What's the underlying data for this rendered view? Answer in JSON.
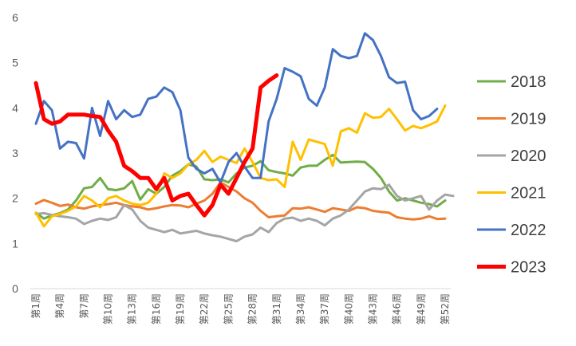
{
  "chart_data": {
    "type": "line",
    "title": "",
    "xlabel": "",
    "ylabel": "",
    "ylim": [
      0,
      6
    ],
    "yticks": [
      "0",
      "1",
      "2",
      "3",
      "4",
      "5",
      "6"
    ],
    "x_tick_labels": [
      "第1周",
      "第4周",
      "第7周",
      "第10周",
      "第13周",
      "第16周",
      "第19周",
      "第22周",
      "第25周",
      "第28周",
      "第31周",
      "第34周",
      "第37周",
      "第40周",
      "第43周",
      "第46周",
      "第49周",
      "第52周"
    ],
    "grid": false,
    "legend": "right",
    "series": [
      {
        "name": "2018",
        "color": "#70AD47",
        "values": [
          1.68,
          1.55,
          1.62,
          1.67,
          1.75,
          1.95,
          2.22,
          2.25,
          2.45,
          2.2,
          2.18,
          2.22,
          2.38,
          1.97,
          2.2,
          2.1,
          2.25,
          2.5,
          2.6,
          2.75,
          2.7,
          2.42,
          2.4,
          2.42,
          2.35,
          2.55,
          2.68,
          2.72,
          2.82,
          2.62,
          2.58,
          2.55,
          2.5,
          2.68,
          2.72,
          2.72,
          2.85,
          2.96,
          2.79,
          2.8,
          2.81,
          2.8,
          2.65,
          2.45,
          2.15,
          1.95,
          2.0,
          1.95,
          1.9,
          1.87,
          1.82,
          1.95
        ]
      },
      {
        "name": "2019",
        "color": "#ED7D31",
        "values": [
          1.88,
          1.96,
          1.9,
          1.83,
          1.86,
          1.8,
          1.77,
          1.82,
          1.85,
          1.87,
          1.9,
          1.85,
          1.82,
          1.8,
          1.75,
          1.78,
          1.82,
          1.85,
          1.84,
          1.8,
          1.88,
          1.95,
          2.1,
          2.35,
          2.25,
          2.15,
          2.0,
          1.9,
          1.72,
          1.58,
          1.6,
          1.62,
          1.78,
          1.77,
          1.8,
          1.75,
          1.7,
          1.78,
          1.75,
          1.72,
          1.8,
          1.78,
          1.72,
          1.7,
          1.68,
          1.58,
          1.55,
          1.53,
          1.55,
          1.6,
          1.54,
          1.55
        ]
      },
      {
        "name": "2020",
        "color": "#A5A5A5",
        "values": [
          1.65,
          1.67,
          1.63,
          1.6,
          1.58,
          1.55,
          1.43,
          1.5,
          1.55,
          1.52,
          1.58,
          1.85,
          1.75,
          1.5,
          1.35,
          1.3,
          1.25,
          1.3,
          1.22,
          1.25,
          1.28,
          1.22,
          1.18,
          1.15,
          1.1,
          1.05,
          1.15,
          1.2,
          1.35,
          1.25,
          1.45,
          1.55,
          1.57,
          1.5,
          1.55,
          1.5,
          1.4,
          1.55,
          1.62,
          1.75,
          1.95,
          2.15,
          2.22,
          2.2,
          2.3,
          2.05,
          1.95,
          2.0,
          2.05,
          1.75,
          1.95,
          2.08,
          2.05
        ]
      },
      {
        "name": "2021",
        "color": "#FFC000",
        "values": [
          1.68,
          1.38,
          1.6,
          1.65,
          1.72,
          1.82,
          2.05,
          1.95,
          1.8,
          2.0,
          2.05,
          1.95,
          1.88,
          1.85,
          1.9,
          2.1,
          2.55,
          2.45,
          2.55,
          2.75,
          2.85,
          3.05,
          2.8,
          2.92,
          2.85,
          2.78,
          3.1,
          2.8,
          2.45,
          2.4,
          2.42,
          2.25,
          3.25,
          2.85,
          3.3,
          3.25,
          3.2,
          2.72,
          3.48,
          3.55,
          3.45,
          3.88,
          3.78,
          3.8,
          3.98,
          3.75,
          3.5,
          3.6,
          3.55,
          3.62,
          3.7,
          4.05
        ]
      },
      {
        "name": "2022",
        "color": "#4472C4",
        "values": [
          3.65,
          4.15,
          3.95,
          3.1,
          3.25,
          3.22,
          2.88,
          4.0,
          3.38,
          4.15,
          3.75,
          3.95,
          3.8,
          3.85,
          4.2,
          4.25,
          4.45,
          4.35,
          3.95,
          2.9,
          2.65,
          2.55,
          2.65,
          2.35,
          2.8,
          3.0,
          2.7,
          2.45,
          2.45,
          3.7,
          4.2,
          4.88,
          4.8,
          4.7,
          4.2,
          4.05,
          4.45,
          5.3,
          5.15,
          5.1,
          5.15,
          5.65,
          5.5,
          5.15,
          4.68,
          4.55,
          4.58,
          3.95,
          3.75,
          3.82,
          3.98
        ]
      },
      {
        "name": "2023",
        "color": "#FF0000",
        "values": [
          4.55,
          3.75,
          3.65,
          3.7,
          3.85,
          3.85,
          3.85,
          3.82,
          3.8,
          3.5,
          3.25,
          2.72,
          2.6,
          2.45,
          2.45,
          2.2,
          2.45,
          1.95,
          2.05,
          2.1,
          1.85,
          1.62,
          1.85,
          2.3,
          2.1,
          2.45,
          2.8,
          3.1,
          4.45,
          4.6,
          4.72
        ]
      }
    ]
  }
}
